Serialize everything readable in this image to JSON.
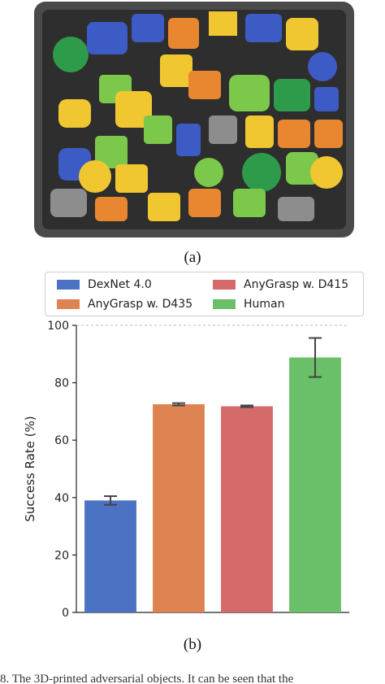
{
  "figure": {
    "caption_a": "(a)",
    "caption_b": "(b)",
    "cutoff_text": "8. The 3D-printed adversarial objects. It can be seen that the",
    "photo_description_colors": [
      "#3c5bc4",
      "#f0c730",
      "#e8872f",
      "#7cc84a",
      "#2e9b4b",
      "#8d8d8d"
    ]
  },
  "legend": {
    "items": [
      {
        "label": "DexNet 4.0",
        "color": "#4c72c4"
      },
      {
        "label": "AnyGrasp w. D415",
        "color": "#d46a6a"
      },
      {
        "label": "AnyGrasp w. D435",
        "color": "#dd8452"
      },
      {
        "label": "Human",
        "color": "#6abf69"
      }
    ]
  },
  "chart_data": {
    "type": "bar",
    "title": "",
    "xlabel": "",
    "ylabel": "Success Rate (%)",
    "ylim": [
      0,
      100
    ],
    "yticks": [
      0,
      20,
      40,
      60,
      80,
      100
    ],
    "grid": "dashed line at 100",
    "legend_position": "top",
    "categories": [
      "DexNet 4.0",
      "AnyGrasp w. D435",
      "AnyGrasp w. D415",
      "Human"
    ],
    "values": [
      39,
      72.5,
      71.8,
      88.8
    ],
    "error": [
      1.5,
      0.4,
      0.3,
      6.8
    ],
    "colors": [
      "#4c72c4",
      "#dd8452",
      "#d46a6a",
      "#6abf69"
    ]
  }
}
